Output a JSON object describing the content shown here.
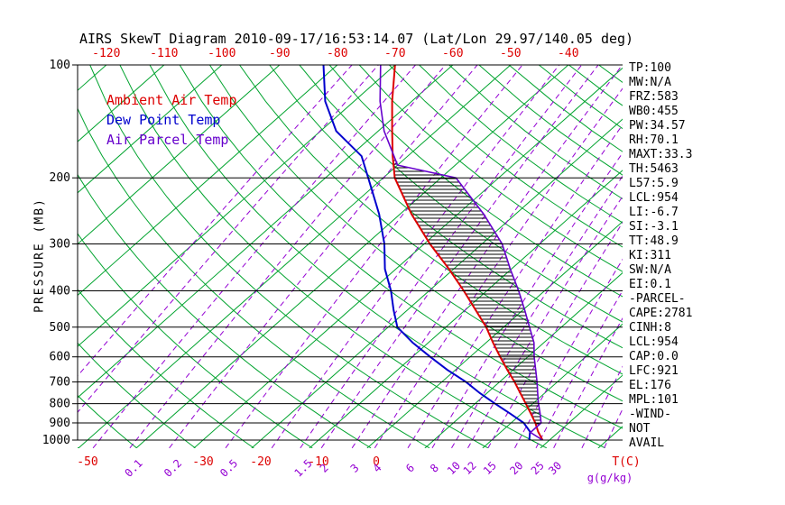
{
  "title": "AIRS SkewT Diagram 2010-09-17/16:53:14.07 (Lat/Lon 29.97/140.05 deg)",
  "legend": [
    {
      "label": "Ambient Air Temp",
      "color": "#dd0000"
    },
    {
      "label": "Dew Point Temp",
      "color": "#0000cd"
    },
    {
      "label": "Air Parcel Temp",
      "color": "#6600cc"
    }
  ],
  "axes": {
    "pressure_label": "PRESSURE (MB)",
    "pressure_ticks": [
      100,
      200,
      300,
      400,
      500,
      600,
      700,
      800,
      900,
      1000
    ],
    "top_temp_ticks": [
      -120,
      -110,
      -100,
      -90,
      -80,
      -70,
      -60,
      -50,
      -40
    ],
    "bottom_temp_ticks": [
      -50,
      -30,
      -20,
      -10,
      0
    ],
    "temp_unit_label": "T(C)",
    "mixing_unit_label": "g(g/kg)",
    "mixing_ratio_tick_labels": [
      0.1,
      0.2,
      0.5,
      1.5,
      2,
      3,
      4,
      6,
      8,
      10,
      12,
      15,
      20,
      25,
      30
    ]
  },
  "stats": [
    "TP:100",
    "MW:N/A",
    "FRZ:583",
    "WB0:455",
    "PW:34.57",
    "RH:70.1",
    "MAXT:33.3",
    "TH:5463",
    "L57:5.9",
    "LCL:954",
    "LI:-6.7",
    "SI:-3.1",
    "TT:48.9",
    "KI:311",
    "SW:N/A",
    "EI:0.1",
    "-PARCEL-",
    "CAPE:2781",
    "CINH:8",
    "LCL:954",
    "CAP:0.0",
    "LFC:921",
    "EL:176",
    "MPL:101",
    "-WIND-",
    "NOT",
    "AVAIL"
  ],
  "chart_data": {
    "type": "line",
    "variant": "skew-t-log-p",
    "title": "AIRS SkewT Diagram 2010-09-17/16:53:14.07 (Lat/Lon 29.97/140.05 deg)",
    "x_axis": {
      "label": "T(C)",
      "unit": "degC",
      "range_at_1000mb": [
        -52,
        43
      ],
      "skewed_isotherms": true
    },
    "y_axis": {
      "label": "PRESSURE (MB)",
      "unit": "mb",
      "scale": "log",
      "range": [
        100,
        1000
      ]
    },
    "series": [
      {
        "name": "Ambient Air Temp",
        "color": "#dd0000",
        "width": 2,
        "points_p_t": [
          [
            1000,
            28.8
          ],
          [
            950,
            26.4
          ],
          [
            900,
            24.2
          ],
          [
            850,
            21.6
          ],
          [
            800,
            18.8
          ],
          [
            750,
            15.8
          ],
          [
            700,
            12.6
          ],
          [
            650,
            9.0
          ],
          [
            600,
            5.2
          ],
          [
            550,
            1.2
          ],
          [
            500,
            -3.0
          ],
          [
            450,
            -8.2
          ],
          [
            400,
            -14.0
          ],
          [
            350,
            -20.8
          ],
          [
            300,
            -29.0
          ],
          [
            250,
            -38.0
          ],
          [
            200,
            -48.0
          ],
          [
            175,
            -52.6
          ],
          [
            150,
            -57.6
          ],
          [
            125,
            -63.4
          ],
          [
            100,
            -70.0
          ]
        ]
      },
      {
        "name": "Dew Point Temp",
        "color": "#0000cd",
        "width": 2,
        "points_p_t": [
          [
            1000,
            26.5
          ],
          [
            950,
            25.0
          ],
          [
            900,
            22.2
          ],
          [
            850,
            18.0
          ],
          [
            800,
            13.5
          ],
          [
            750,
            8.8
          ],
          [
            700,
            4.2
          ],
          [
            650,
            -1.4
          ],
          [
            600,
            -6.9
          ],
          [
            550,
            -12.7
          ],
          [
            500,
            -18.4
          ],
          [
            450,
            -22.4
          ],
          [
            400,
            -26.6
          ],
          [
            350,
            -31.9
          ],
          [
            300,
            -36.9
          ],
          [
            250,
            -43.6
          ],
          [
            200,
            -52.6
          ],
          [
            175,
            -58.0
          ],
          [
            150,
            -67.3
          ],
          [
            125,
            -75.0
          ],
          [
            100,
            -82.4
          ]
        ]
      },
      {
        "name": "Air Parcel Temp",
        "color": "#6600cc",
        "width": 1.6,
        "points_p_t": [
          [
            1000,
            28.8
          ],
          [
            954,
            25.2
          ],
          [
            900,
            25.2
          ],
          [
            850,
            23.2
          ],
          [
            800,
            21.0
          ],
          [
            750,
            18.8
          ],
          [
            700,
            16.5
          ],
          [
            650,
            13.9
          ],
          [
            600,
            11.1
          ],
          [
            550,
            8.3
          ],
          [
            500,
            4.5
          ],
          [
            450,
            0.3
          ],
          [
            400,
            -4.5
          ],
          [
            350,
            -10.2
          ],
          [
            300,
            -16.5
          ],
          [
            250,
            -25.5
          ],
          [
            200,
            -37.4
          ],
          [
            185,
            -50.0
          ],
          [
            150,
            -59.0
          ],
          [
            125,
            -65.5
          ],
          [
            100,
            -72.5
          ]
        ]
      }
    ],
    "cape_hatch": {
      "between": [
        "Air Parcel Temp",
        "Ambient Air Temp"
      ],
      "color": "#000000",
      "spacing_px": 4
    },
    "grid": {
      "isotherms_c": {
        "min": -120,
        "max": 40,
        "step": 10,
        "color": "#00a32e"
      },
      "dry_adiabats_k": {
        "min": 220,
        "max": 460,
        "step": 10,
        "color": "#00a32e"
      },
      "mixing_ratio_g_kg": [
        0.01,
        0.02,
        0.05,
        0.1,
        0.2,
        0.5,
        1,
        1.5,
        2,
        3,
        4,
        6,
        8,
        10,
        12,
        15,
        20,
        25,
        30,
        40,
        50
      ],
      "mixing_ratio_color": "#9400d3",
      "pressure_lines_mb": [
        100,
        200,
        300,
        400,
        500,
        600,
        700,
        800,
        900,
        1000
      ]
    }
  }
}
